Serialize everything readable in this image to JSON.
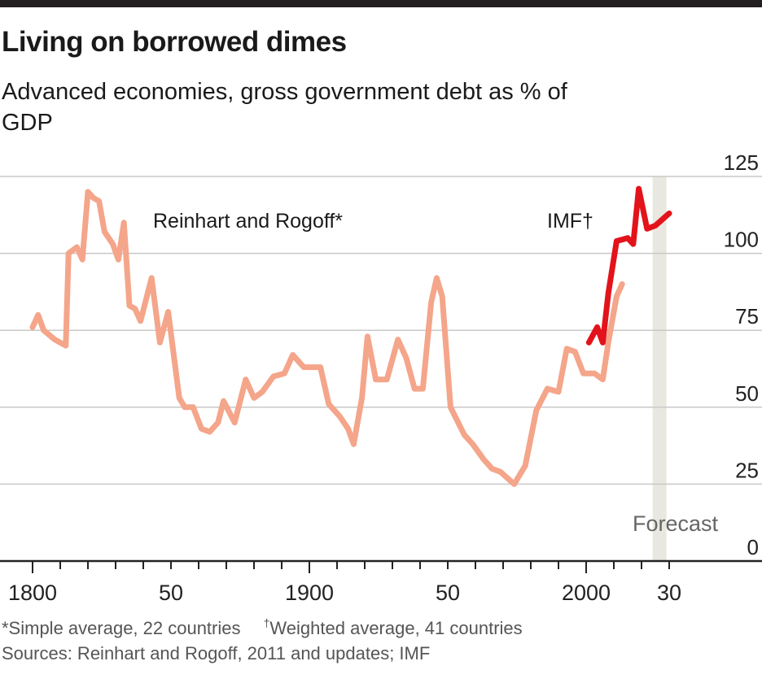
{
  "header": {
    "title": "Living on borrowed dimes",
    "subtitle": "Advanced economies, gross government debt as % of GDP"
  },
  "footer": {
    "note_simple": "*Simple average, 22 countries",
    "note_weighted_mark": "†",
    "note_weighted": "Weighted average, 41 countries",
    "sources": "Sources: Reinhart and Rogoff, 2011 and updates; IMF"
  },
  "chart_data": {
    "type": "line",
    "title": "Living on borrowed dimes",
    "subtitle": "Advanced economies, gross government debt as % of GDP",
    "xlabel": "",
    "ylabel": "% of GDP",
    "xlim": [
      1800,
      2030
    ],
    "ylim": [
      0,
      125
    ],
    "grid": true,
    "y_axis_side": "right",
    "yticks": [
      0,
      25,
      50,
      75,
      100,
      125
    ],
    "ytick_labels": [
      "0",
      "25",
      "50",
      "75",
      "100",
      "125"
    ],
    "xticks_major": [
      1800,
      1850,
      1900,
      1950,
      2000,
      2030
    ],
    "xtick_labels": [
      "1800",
      "50",
      "1900",
      "50",
      "2000",
      "30"
    ],
    "xtick_minor_step": 10,
    "forecast_band": {
      "label": "Forecast",
      "from": 2024,
      "to": 2029,
      "color": "#e8e8e0"
    },
    "series": [
      {
        "name": "Reinhart and Rogoff*",
        "color": "#f4a58a",
        "x": [
          1800,
          1802,
          1804,
          1808,
          1812,
          1813,
          1816,
          1818,
          1820,
          1822,
          1824,
          1826,
          1829,
          1831,
          1833,
          1835,
          1837,
          1839,
          1843,
          1846,
          1849,
          1853,
          1855,
          1858,
          1861,
          1864,
          1867,
          1869,
          1873,
          1877,
          1880,
          1883,
          1887,
          1891,
          1894,
          1898,
          1904,
          1907,
          1911,
          1914,
          1916,
          1919,
          1921,
          1924,
          1928,
          1932,
          1935,
          1938,
          1941,
          1944,
          1946,
          1948,
          1951,
          1956,
          1959,
          1963,
          1966,
          1969,
          1974,
          1978,
          1982,
          1986,
          1990,
          1993,
          1996,
          1999,
          2003,
          2006,
          2008,
          2011,
          2013
        ],
        "values": [
          76,
          80,
          75,
          72,
          70,
          100,
          102,
          98,
          120,
          118,
          117,
          107,
          103,
          98,
          110,
          83,
          82,
          78,
          92,
          71,
          81,
          53,
          50,
          50,
          43,
          42,
          45,
          52,
          45,
          59,
          53,
          55,
          60,
          61,
          67,
          63,
          63,
          51,
          47,
          43,
          38,
          53,
          73,
          59,
          59,
          72,
          66,
          56,
          56,
          84,
          92,
          86,
          50,
          41,
          38,
          33,
          30,
          29,
          25,
          31,
          49,
          56,
          55,
          69,
          68,
          61,
          61,
          59,
          71,
          86,
          90
        ]
      },
      {
        "name": "IMF†",
        "color": "#e3131b",
        "x": [
          2001,
          2004,
          2006,
          2008,
          2011,
          2015,
          2017,
          2019,
          2022,
          2025,
          2030
        ],
        "values": [
          71,
          76,
          71,
          87,
          104,
          105,
          103,
          121,
          108,
          109,
          113
        ]
      }
    ],
    "annotations": [
      {
        "text": "Reinhart and Rogoff*",
        "near_series": 0
      },
      {
        "text": "IMF†",
        "near_series": 1
      },
      {
        "text": "Forecast",
        "near": "forecast_band"
      }
    ]
  }
}
